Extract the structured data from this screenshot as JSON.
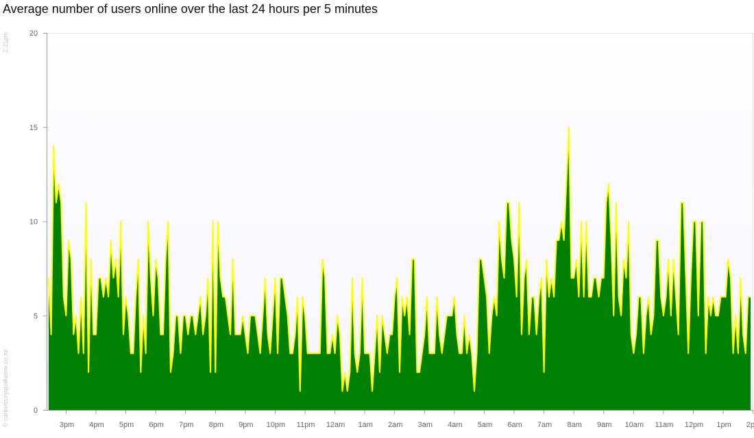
{
  "chart_data": {
    "type": "area",
    "title": "Average number of users online over the last 24 hours per 5 minutes",
    "xlabel": "",
    "ylabel": "",
    "ylim": [
      0,
      20
    ],
    "yticks": [
      "0",
      "5",
      "10",
      "15",
      "20"
    ],
    "x_tick_labels": [
      "3pm",
      "4pm",
      "5pm",
      "6pm",
      "7pm",
      "8pm",
      "9pm",
      "10pm",
      "11pm",
      "12am",
      "1am",
      "2am",
      "3am",
      "4am",
      "5am",
      "6am",
      "7am",
      "8am",
      "9am",
      "10am",
      "11am",
      "12pm",
      "1pm",
      "2pm"
    ],
    "x_range": [
      "2:25pm",
      "2:20pm"
    ],
    "interval_minutes": 5,
    "grid": false,
    "colors": {
      "fill": "#008000",
      "line": "#ffff00",
      "plot_bg_top": "#ffffff",
      "plot_bg_bottom": "#f4f4fb"
    },
    "series": [
      {
        "values": [
          7,
          4,
          14,
          11,
          12,
          11,
          6,
          5,
          9,
          8,
          4,
          5,
          3,
          6,
          3,
          11,
          2,
          8,
          4,
          4,
          7,
          7,
          6,
          7,
          6,
          9,
          7,
          8,
          6,
          10,
          4,
          6,
          5,
          3,
          3,
          6,
          8,
          2,
          5,
          3,
          10,
          7,
          5,
          8,
          7,
          4,
          4,
          8,
          10,
          2,
          3,
          5,
          5,
          3,
          5,
          5,
          4,
          5,
          5,
          4,
          5,
          6,
          4,
          5,
          7,
          2,
          10,
          2,
          10,
          7,
          6,
          6,
          5,
          4,
          8,
          4,
          4,
          4,
          5,
          4,
          3,
          5,
          5,
          5,
          4,
          3,
          5,
          7,
          4,
          3,
          5,
          7,
          3,
          7,
          7,
          6,
          5,
          3,
          3,
          4,
          6,
          1,
          6,
          5,
          3,
          3,
          3,
          3,
          3,
          3,
          8,
          7,
          3,
          3,
          4,
          3,
          5,
          4,
          1,
          2,
          1,
          2,
          7,
          3,
          2,
          3,
          7,
          3,
          3,
          3,
          1,
          3,
          5,
          2,
          5,
          4,
          3,
          4,
          4,
          6,
          7,
          2,
          6,
          5,
          6,
          4,
          8,
          8,
          2,
          2,
          3,
          4,
          6,
          3,
          3,
          3,
          6,
          4,
          3,
          4,
          5,
          5,
          5,
          6,
          4,
          3,
          3,
          5,
          3,
          4,
          3,
          1,
          3,
          8,
          8,
          7,
          6,
          3,
          5,
          6,
          5,
          10,
          8,
          7,
          11,
          11,
          9,
          8,
          6,
          11,
          4,
          7,
          8,
          4,
          6,
          6,
          4,
          6,
          7,
          2,
          8,
          6,
          7,
          6,
          9,
          9,
          10,
          9,
          12,
          15,
          7,
          7,
          8,
          6,
          10,
          6,
          10,
          6,
          6,
          7,
          7,
          6,
          7,
          7,
          11,
          12,
          9,
          5,
          11,
          6,
          5,
          8,
          7,
          10,
          4,
          3,
          4,
          6,
          6,
          3,
          5,
          6,
          4,
          5,
          9,
          9,
          6,
          5,
          6,
          8,
          5,
          8,
          6,
          4,
          11,
          11,
          7,
          3,
          7,
          10,
          10,
          5,
          10,
          10,
          3,
          6,
          5,
          6,
          5,
          5,
          6,
          6,
          6,
          8,
          7,
          3,
          5,
          3,
          7,
          4,
          3,
          6,
          6
        ]
      }
    ]
  },
  "side": {
    "time": "2:21pm",
    "copyright": "© canterburyquakelive.co.nz"
  }
}
